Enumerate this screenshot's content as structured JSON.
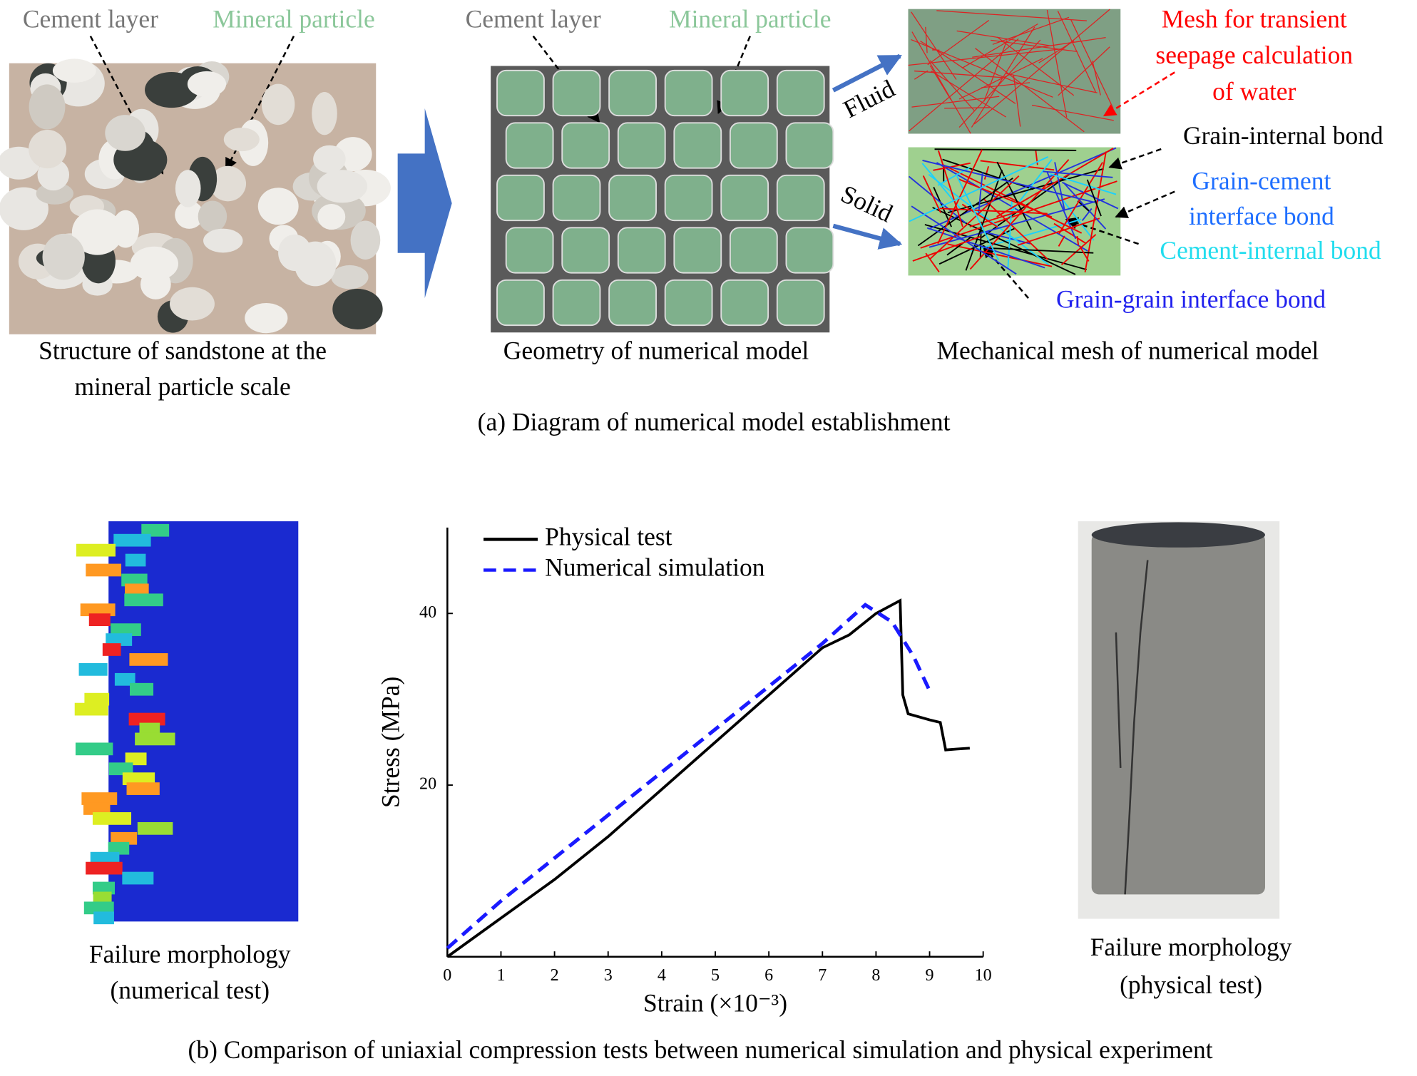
{
  "panel_a": {
    "photo_cement_label": "Cement layer",
    "photo_mineral_label": "Mineral particle",
    "photo_caption": [
      "Structure of sandstone at the",
      "mineral particle scale"
    ],
    "model_cement_label": "Cement layer",
    "model_mineral_label": "Mineral particle",
    "model_caption": "Geometry of numerical model",
    "fluid_label": "Fluid",
    "solid_label": "Solid",
    "fluid_mesh_label": [
      "Mesh for transient",
      "seepage calculation",
      "of water"
    ],
    "grain_internal_bond": "Grain-internal bond",
    "grain_cement_bond": [
      "Grain-cement",
      "interface bond"
    ],
    "cement_internal_bond": "Cement-internal bond",
    "grain_grain_bond": "Grain-grain interface bond",
    "mesh_caption": "Mechanical mesh of numerical model",
    "caption": "(a) Diagram of  numerical model establishment"
  },
  "panel_b": {
    "numerical_caption": [
      "Failure morphology",
      "(numerical test)"
    ],
    "physical_caption": [
      "Failure morphology",
      "(physical test)"
    ],
    "caption": "(b) Comparison of uniaxial compression tests between numerical simulation and physical experiment"
  },
  "chart_data": {
    "type": "line",
    "x_label": "Strain (×10⁻³)",
    "y_label": "Stress (MPa)",
    "xlim": [
      0,
      10
    ],
    "ylim": [
      0,
      50
    ],
    "xticks": [
      0,
      1,
      2,
      3,
      4,
      5,
      6,
      7,
      8,
      9,
      10
    ],
    "yticks": [
      20,
      40
    ],
    "legend": "upper left",
    "series": [
      {
        "name": "Physical test",
        "color": "#000000",
        "line_style": "solid",
        "x": [
          0,
          1,
          2,
          3,
          4,
          5,
          6,
          7,
          7.5,
          8,
          8.45,
          8.5,
          8.6,
          9,
          9.2,
          9.3,
          9.5,
          9.75
        ],
        "values": [
          0,
          4.5,
          9,
          14,
          19.5,
          25,
          30.5,
          36,
          37.5,
          40,
          41.5,
          30.5,
          28.3,
          27.6,
          27.3,
          24.1,
          24.2,
          24.3
        ]
      },
      {
        "name": "Numerical simulation",
        "color": "#1a1aff",
        "line_style": "dashed",
        "x": [
          0,
          1,
          2,
          3,
          4,
          5,
          6,
          7,
          7.8,
          8.3,
          8.7,
          9
        ],
        "values": [
          1,
          6.5,
          11.5,
          16.5,
          21.5,
          26.5,
          31.5,
          36.5,
          41,
          39,
          35,
          31
        ]
      }
    ]
  }
}
